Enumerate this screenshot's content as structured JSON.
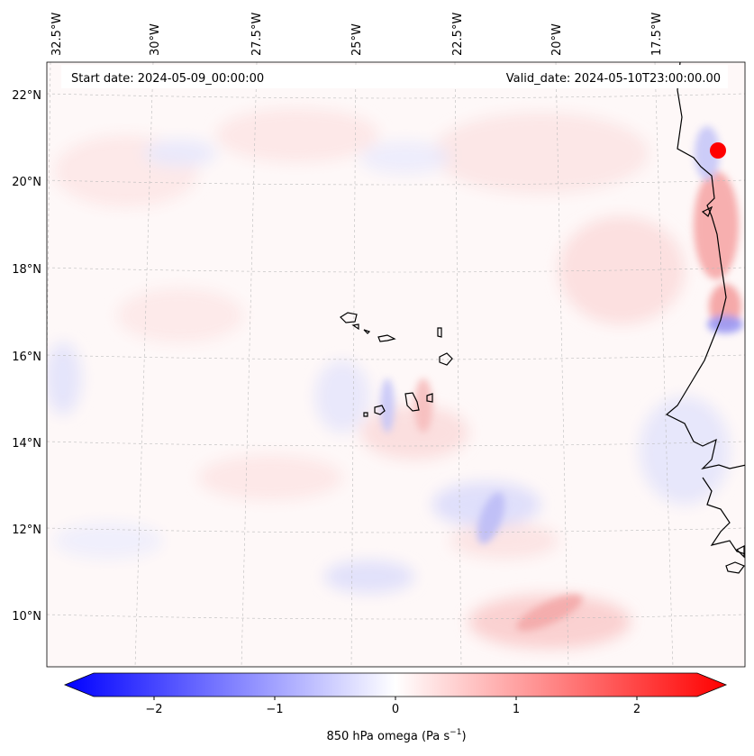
{
  "map": {
    "start_label": "Start date: 2024-05-09_00:00:00",
    "valid_label": "Valid_date: 2024-05-10T23:00:00.00",
    "lon_ticks": [
      "32.5°W",
      "30°W",
      "27.5°W",
      "25°W",
      "22.5°W",
      "20°W",
      "17.5°W"
    ],
    "lat_ticks": [
      "22°N",
      "20°N",
      "18°N",
      "16°N",
      "14°N",
      "12°N",
      "10°N"
    ],
    "colorbar": {
      "tick_labels": [
        "−2",
        "−1",
        "0",
        "1",
        "2"
      ],
      "tick_values": [
        -2,
        -1,
        0,
        1,
        2
      ],
      "vmin": -2.5,
      "vmax": 2.5,
      "label_main": "850 hPa omega (Pa s",
      "label_sup": "−1",
      "label_end": ")",
      "color_min": "#0000ff",
      "color_mid": "#ffffff",
      "color_max": "#ff0000"
    },
    "colors": {
      "coast": "#000000",
      "grid": "#bbbbbb"
    }
  }
}
